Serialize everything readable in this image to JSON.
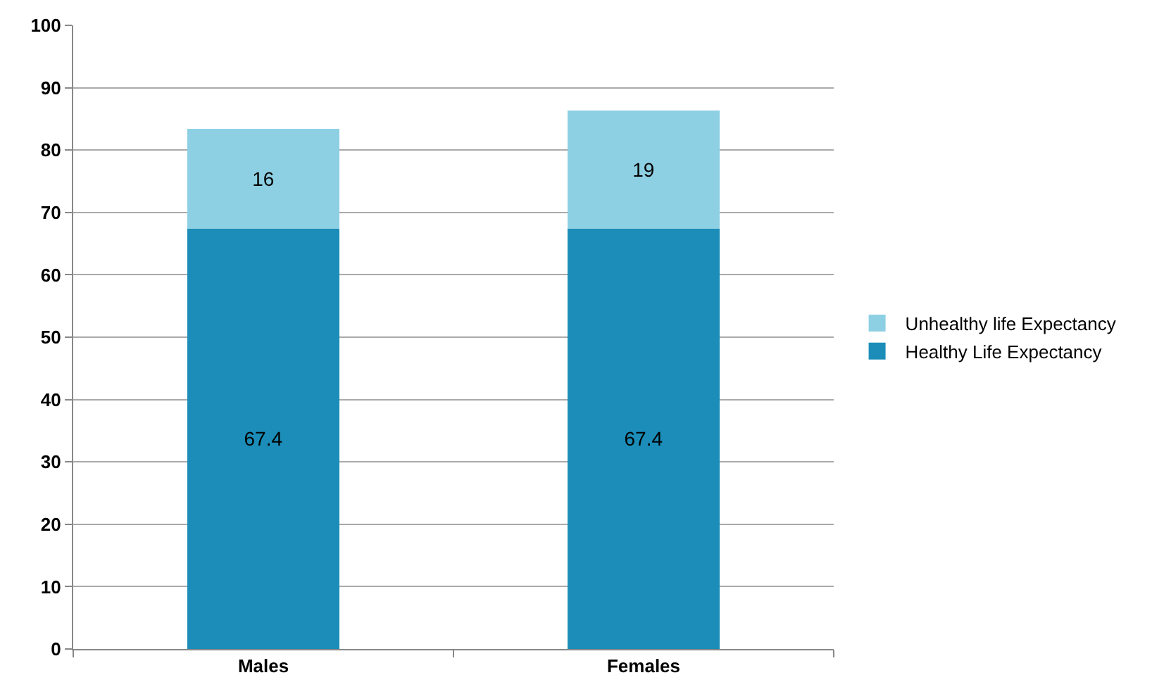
{
  "chart_data": {
    "type": "bar",
    "stacked": true,
    "categories": [
      "Males",
      "Females"
    ],
    "series": [
      {
        "name": "Healthy Life Expectancy",
        "color": "#1b8db8",
        "values": [
          67.4,
          67.4
        ]
      },
      {
        "name": "Unhealthy life Expectancy",
        "color": "#8ed0e3",
        "values": [
          16,
          19
        ]
      }
    ],
    "ylim": [
      0,
      100
    ],
    "yticks": [
      0,
      10,
      20,
      30,
      40,
      50,
      60,
      70,
      80,
      90,
      100
    ],
    "grid": "y",
    "legend": "right",
    "data_labels": true
  }
}
